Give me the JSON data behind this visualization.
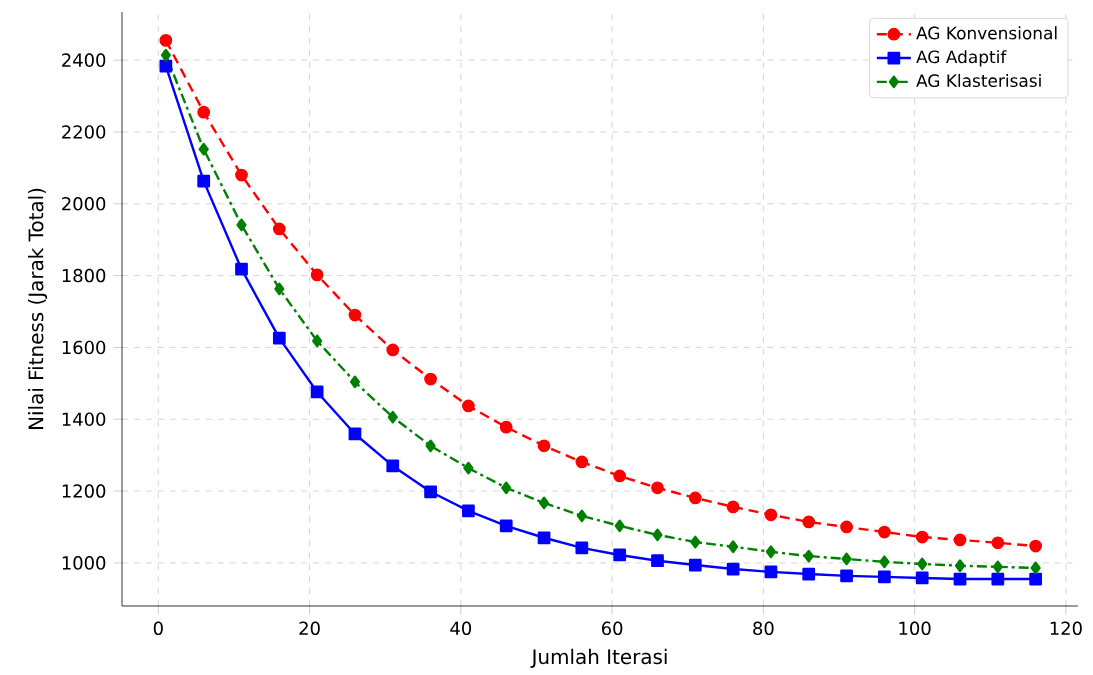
{
  "chart_data": {
    "type": "line",
    "xlabel": "Jumlah Iterasi",
    "ylabel": "Nilai Fitness (Jarak Total)",
    "x": [
      1,
      6,
      11,
      16,
      21,
      26,
      31,
      36,
      41,
      46,
      51,
      56,
      61,
      66,
      71,
      76,
      81,
      86,
      91,
      96,
      101,
      106,
      111,
      116
    ],
    "series": [
      {
        "name": "AG Konvensional",
        "color": "#ff0000",
        "marker": "circle",
        "line_style": "dashed",
        "values": [
          2455,
          2255,
          2080,
          1930,
          1802,
          1690,
          1593,
          1512,
          1437,
          1378,
          1326,
          1281,
          1242,
          1209,
          1181,
          1156,
          1134,
          1114,
          1100,
          1086,
          1072,
          1064,
          1056,
          1047
        ]
      },
      {
        "name": "AG Adaptif",
        "color": "#0000ff",
        "marker": "square",
        "line_style": "solid",
        "values": [
          2383,
          2063,
          1818,
          1626,
          1476,
          1359,
          1270,
          1198,
          1145,
          1103,
          1070,
          1042,
          1022,
          1006,
          994,
          983,
          975,
          969,
          964,
          961,
          958,
          955,
          955,
          955
        ]
      },
      {
        "name": "AG Klasterisasi",
        "color": "#008000",
        "marker": "diamond",
        "line_style": "dashdot",
        "values": [
          2414,
          2152,
          1941,
          1763,
          1618,
          1504,
          1406,
          1326,
          1264,
          1209,
          1167,
          1131,
          1103,
          1078,
          1058,
          1045,
          1031,
          1019,
          1011,
          1003,
          997,
          992,
          989,
          986
        ]
      }
    ],
    "xlim": [
      -4.8,
      121.6
    ],
    "ylim": [
      880,
      2534
    ],
    "xticks": [
      0,
      20,
      40,
      60,
      80,
      100,
      120
    ],
    "yticks": [
      1000,
      1200,
      1400,
      1600,
      1800,
      2000,
      2200,
      2400
    ],
    "grid": true,
    "legend": "top right"
  }
}
